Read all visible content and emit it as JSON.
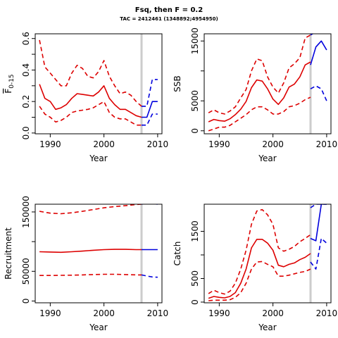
{
  "title": "Fsq, then F = 0.2",
  "subtitle": "TAC = 2412461 (1348892;4954950)",
  "colors": {
    "historic": "#dd0000",
    "projection": "#0000dd",
    "vline": "#cccccc"
  },
  "chart_data": [
    {
      "type": "line",
      "ylabel": "F0-15",
      "ylabel_main": "F",
      "ylabel_sub": "0-15",
      "xlabel": "Year",
      "xlim": [
        1987.2,
        2010.8
      ],
      "ylim": [
        -0.005,
        0.63
      ],
      "xticks": [
        1990,
        2000,
        2010
      ],
      "xticklabels": [
        "1990",
        "2000",
        "2010"
      ],
      "yticks": [
        0,
        0.1,
        0.2,
        0.3,
        0.4,
        0.5,
        0.6
      ],
      "yticklabels": [
        "0.0",
        "",
        "0.2",
        "",
        "0.4",
        "",
        "0.6"
      ],
      "vline": 2007,
      "series": [
        {
          "role": "median",
          "color": "#dd0000",
          "x": [
            1988,
            1989,
            1990,
            1991,
            1992,
            1993,
            1994,
            1995,
            1996,
            1997,
            1998,
            1999,
            2000,
            2001,
            2002,
            2003,
            2004,
            2005,
            2006,
            2007
          ],
          "y": [
            0.31,
            0.22,
            0.2,
            0.15,
            0.16,
            0.18,
            0.22,
            0.25,
            0.245,
            0.24,
            0.235,
            0.26,
            0.3,
            0.22,
            0.18,
            0.15,
            0.15,
            0.13,
            0.11,
            0.1
          ]
        },
        {
          "role": "upper",
          "color": "#dd0000",
          "x": [
            1988,
            1989,
            1990,
            1991,
            1992,
            1993,
            1994,
            1995,
            1996,
            1997,
            1998,
            1999,
            2000,
            2001,
            2002,
            2003,
            2004,
            2005,
            2006,
            2007
          ],
          "y": [
            0.59,
            0.42,
            0.38,
            0.34,
            0.3,
            0.3,
            0.38,
            0.43,
            0.41,
            0.36,
            0.35,
            0.39,
            0.46,
            0.36,
            0.3,
            0.25,
            0.26,
            0.24,
            0.2,
            0.17
          ]
        },
        {
          "role": "lower",
          "color": "#dd0000",
          "x": [
            1988,
            1989,
            1990,
            1991,
            1992,
            1993,
            1994,
            1995,
            1996,
            1997,
            1998,
            1999,
            2000,
            2001,
            2002,
            2003,
            2004,
            2005,
            2006,
            2007
          ],
          "y": [
            0.17,
            0.12,
            0.1,
            0.07,
            0.08,
            0.1,
            0.13,
            0.14,
            0.145,
            0.15,
            0.16,
            0.18,
            0.2,
            0.13,
            0.1,
            0.09,
            0.09,
            0.07,
            0.05,
            0.05
          ]
        },
        {
          "role": "median",
          "color": "#0000dd",
          "x": [
            2007,
            2008,
            2009,
            2010
          ],
          "y": [
            0.1,
            0.1,
            0.2,
            0.2
          ]
        },
        {
          "role": "upper",
          "color": "#0000dd",
          "x": [
            2007,
            2008,
            2009,
            2010
          ],
          "y": [
            0.17,
            0.17,
            0.34,
            0.34
          ]
        },
        {
          "role": "lower",
          "color": "#0000dd",
          "x": [
            2007,
            2008,
            2009,
            2010
          ],
          "y": [
            0.05,
            0.05,
            0.12,
            0.12
          ]
        }
      ]
    },
    {
      "type": "line",
      "ylabel": "SSB",
      "xlabel": "Year",
      "xlim": [
        1987.2,
        2010.8
      ],
      "ylim": [
        -500,
        16200
      ],
      "xticks": [
        1990,
        2000,
        2010
      ],
      "xticklabels": [
        "1990",
        "2000",
        "2010"
      ],
      "yticks": [
        0,
        5000,
        10000,
        15000
      ],
      "yticklabels": [
        "0",
        "5000",
        "",
        "15000"
      ],
      "vline": 2007,
      "series": [
        {
          "role": "median",
          "color": "#dd0000",
          "x": [
            1988,
            1989,
            1990,
            1991,
            1992,
            1993,
            1994,
            1995,
            1996,
            1997,
            1998,
            1999,
            2000,
            2001,
            2002,
            2003,
            2004,
            2005,
            2006,
            2007
          ],
          "y": [
            1500,
            1900,
            1700,
            1600,
            2000,
            2700,
            3600,
            4900,
            7200,
            8500,
            8300,
            7000,
            5300,
            4400,
            5500,
            7300,
            7800,
            9000,
            11000,
            11500
          ]
        },
        {
          "role": "upper",
          "color": "#dd0000",
          "x": [
            1988,
            1989,
            1990,
            1991,
            1992,
            1993,
            1994,
            1995,
            1996,
            1997,
            1998,
            1999,
            2000,
            2001,
            2002,
            2003,
            2004,
            2005,
            2006,
            2007
          ],
          "y": [
            3000,
            3500,
            3000,
            2800,
            3300,
            4000,
            5500,
            6900,
            10000,
            12000,
            11700,
            9000,
            7300,
            6300,
            8000,
            10500,
            11200,
            12200,
            15500,
            16000
          ]
        },
        {
          "role": "lower",
          "color": "#dd0000",
          "x": [
            1988,
            1989,
            1990,
            1991,
            1992,
            1993,
            1994,
            1995,
            1996,
            1997,
            1998,
            1999,
            2000,
            2001,
            2002,
            2003,
            2004,
            2005,
            2006,
            2007
          ],
          "y": [
            0,
            300,
            600,
            600,
            900,
            1500,
            2100,
            2700,
            3500,
            4000,
            4000,
            3500,
            2800,
            2800,
            3200,
            4000,
            4200,
            4600,
            5200,
            5600
          ]
        },
        {
          "role": "median",
          "color": "#0000dd",
          "x": [
            2007,
            2008,
            2009,
            2010
          ],
          "y": [
            11000,
            14000,
            15000,
            13500
          ]
        },
        {
          "role": "upper",
          "color": "#0000dd",
          "x": [
            2007,
            2008,
            2009,
            2010
          ],
          "y": [
            16000,
            16500,
            16500,
            16500
          ]
        },
        {
          "role": "lower",
          "color": "#0000dd",
          "x": [
            2007,
            2008,
            2009,
            2010
          ],
          "y": [
            7000,
            7500,
            7000,
            5000
          ]
        }
      ]
    },
    {
      "type": "line",
      "ylabel": "Recruitment",
      "xlabel": "Year",
      "xlim": [
        1987.2,
        2010.8
      ],
      "ylim": [
        -3000,
        163000
      ],
      "xticks": [
        1990,
        2000,
        2010
      ],
      "xticklabels": [
        "1990",
        "2000",
        "2010"
      ],
      "yticks": [
        0,
        50000,
        100000,
        150000
      ],
      "yticklabels": [
        "0",
        "50000",
        "",
        "150000"
      ],
      "vline": 2007,
      "series": [
        {
          "role": "median",
          "color": "#dd0000",
          "x": [
            1988,
            1990,
            1992,
            1994,
            1996,
            1998,
            2000,
            2002,
            2004,
            2006,
            2007
          ],
          "y": [
            83000,
            82500,
            82000,
            83000,
            84000,
            85500,
            86500,
            87000,
            87000,
            86500,
            86500
          ]
        },
        {
          "role": "upper",
          "color": "#dd0000",
          "x": [
            1988,
            1990,
            1992,
            1994,
            1996,
            1998,
            2000,
            2002,
            2004,
            2006,
            2007
          ],
          "y": [
            151000,
            148000,
            147000,
            148500,
            151000,
            154000,
            157000,
            159000,
            160500,
            162500,
            163000
          ]
        },
        {
          "role": "lower",
          "color": "#dd0000",
          "x": [
            1988,
            1990,
            1992,
            1994,
            1996,
            1998,
            2000,
            2002,
            2004,
            2006,
            2007
          ],
          "y": [
            43000,
            43000,
            43200,
            43500,
            44000,
            44500,
            45000,
            45000,
            44500,
            44000,
            44000
          ]
        },
        {
          "role": "median",
          "color": "#0000dd",
          "x": [
            2007,
            2008,
            2009,
            2010
          ],
          "y": [
            86500,
            86500,
            86500,
            86500
          ]
        },
        {
          "role": "upper",
          "color": "#0000dd",
          "x": [
            2007,
            2008,
            2009,
            2010
          ],
          "y": [
            163000,
            164000,
            164000,
            163000
          ]
        },
        {
          "role": "lower",
          "color": "#0000dd",
          "x": [
            2007,
            2008,
            2009,
            2010
          ],
          "y": [
            44000,
            42000,
            40500,
            40000
          ]
        }
      ]
    },
    {
      "type": "line",
      "ylabel": "Catch",
      "xlabel": "Year",
      "xlim": [
        1987.2,
        2010.8
      ],
      "ylim": [
        -15,
        2075
      ],
      "xticks": [
        1990,
        2000,
        2010
      ],
      "xticklabels": [
        "1990",
        "2000",
        "2010"
      ],
      "yticks": [
        0,
        500,
        1000,
        1500
      ],
      "yticklabels": [
        "0",
        "500",
        "",
        "1500"
      ],
      "vline": 2007,
      "series": [
        {
          "role": "median",
          "color": "#dd0000",
          "x": [
            1988,
            1989,
            1990,
            1991,
            1992,
            1993,
            1994,
            1995,
            1996,
            1997,
            1998,
            1999,
            2000,
            2001,
            2002,
            2003,
            2004,
            2005,
            2006,
            2007
          ],
          "y": [
            80,
            120,
            100,
            90,
            120,
            200,
            400,
            700,
            1150,
            1330,
            1330,
            1250,
            1100,
            780,
            750,
            800,
            830,
            900,
            950,
            1030
          ]
        },
        {
          "role": "upper",
          "color": "#dd0000",
          "x": [
            1988,
            1989,
            1990,
            1991,
            1992,
            1993,
            1994,
            1995,
            1996,
            1997,
            1998,
            1999,
            2000,
            2001,
            2002,
            2003,
            2004,
            2005,
            2006,
            2007
          ],
          "y": [
            180,
            250,
            200,
            170,
            230,
            400,
            700,
            1100,
            1650,
            1930,
            1960,
            1850,
            1650,
            1150,
            1080,
            1120,
            1180,
            1280,
            1350,
            1430
          ]
        },
        {
          "role": "lower",
          "color": "#dd0000",
          "x": [
            1988,
            1989,
            1990,
            1991,
            1992,
            1993,
            1994,
            1995,
            1996,
            1997,
            1998,
            1999,
            2000,
            2001,
            2002,
            2003,
            2004,
            2005,
            2006,
            2007
          ],
          "y": [
            30,
            40,
            40,
            40,
            50,
            100,
            200,
            400,
            700,
            850,
            860,
            800,
            750,
            550,
            550,
            570,
            600,
            630,
            650,
            700
          ]
        },
        {
          "role": "median",
          "color": "#0000dd",
          "x": [
            2007,
            2008,
            2009,
            2010
          ],
          "y": [
            1350,
            1300,
            2075,
            2075
          ]
        },
        {
          "role": "upper",
          "color": "#0000dd",
          "x": [
            2007,
            2008,
            2009,
            2010
          ],
          "y": [
            2000,
            2075,
            2075,
            2075
          ]
        },
        {
          "role": "lower",
          "color": "#0000dd",
          "x": [
            2007,
            2008,
            2009,
            2010
          ],
          "y": [
            850,
            700,
            1350,
            1250
          ]
        }
      ]
    }
  ]
}
